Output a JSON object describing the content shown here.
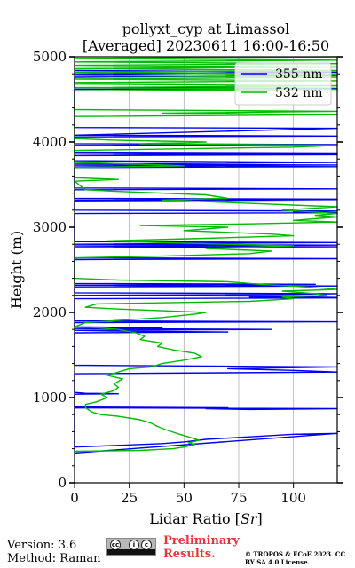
{
  "chart_data": {
    "type": "line",
    "title_line1": "pollyxt_cyp at Limassol",
    "title_line2": "[Averaged] 20230611 16:00-16:50",
    "xlabel_prefix": "Lidar Ratio [",
    "xlabel_unit": "Sr",
    "xlabel_suffix": "]",
    "ylabel": "Height (m)",
    "xlim": [
      0,
      120
    ],
    "ylim": [
      0,
      5000
    ],
    "xticks": [
      0,
      25,
      50,
      75,
      100
    ],
    "yticks": [
      0,
      1000,
      2000,
      3000,
      4000,
      5000
    ],
    "grid": "vertical",
    "legend_position": "top-right",
    "series": [
      {
        "name": "355 nm",
        "color": "#0000ee",
        "points": [
          [
            0,
            350
          ],
          [
            120,
            580
          ],
          [
            100,
            570
          ],
          [
            80,
            540
          ],
          [
            60,
            510
          ],
          [
            50,
            480
          ],
          [
            40,
            460
          ],
          [
            20,
            440
          ],
          [
            0,
            420
          ],
          [
            0,
            880
          ],
          [
            120,
            870
          ],
          [
            80,
            860
          ],
          [
            60,
            870
          ],
          [
            70,
            880
          ],
          [
            0,
            890
          ],
          [
            0,
            1040
          ],
          [
            20,
            1045
          ],
          [
            5,
            1050
          ],
          [
            0,
            1060
          ],
          [
            0,
            1280
          ],
          [
            120,
            1300
          ],
          [
            100,
            1320
          ],
          [
            70,
            1340
          ],
          [
            120,
            1360
          ],
          [
            0,
            1380
          ],
          [
            0,
            1760
          ],
          [
            70,
            1770
          ],
          [
            20,
            1780
          ],
          [
            0,
            1790
          ],
          [
            90,
            1800
          ],
          [
            0,
            1810
          ],
          [
            40,
            1820
          ],
          [
            0,
            1830
          ],
          [
            0,
            1880
          ],
          [
            120,
            1890
          ],
          [
            0,
            1900
          ],
          [
            0,
            2160
          ],
          [
            120,
            2170
          ],
          [
            80,
            2180
          ],
          [
            120,
            2190
          ],
          [
            0,
            2200
          ],
          [
            100,
            2210
          ],
          [
            120,
            2220
          ],
          [
            0,
            2230
          ],
          [
            0,
            2300
          ],
          [
            120,
            2310
          ],
          [
            0,
            2320
          ],
          [
            110,
            2330
          ],
          [
            0,
            2340
          ],
          [
            0,
            2620
          ],
          [
            120,
            2630
          ],
          [
            0,
            2640
          ],
          [
            0,
            2760
          ],
          [
            120,
            2770
          ],
          [
            0,
            2780
          ],
          [
            120,
            2790
          ],
          [
            0,
            2800
          ],
          [
            120,
            2820
          ],
          [
            0,
            2830
          ],
          [
            0,
            3160
          ],
          [
            120,
            3170
          ],
          [
            100,
            3180
          ],
          [
            120,
            3190
          ],
          [
            0,
            3200
          ],
          [
            0,
            3300
          ],
          [
            120,
            3310
          ],
          [
            0,
            3320
          ],
          [
            120,
            3330
          ],
          [
            0,
            3340
          ],
          [
            0,
            3440
          ],
          [
            120,
            3450
          ],
          [
            0,
            3460
          ],
          [
            0,
            3700
          ],
          [
            120,
            3710
          ],
          [
            0,
            3720
          ],
          [
            120,
            3730
          ],
          [
            0,
            3740
          ],
          [
            120,
            3760
          ],
          [
            0,
            3780
          ],
          [
            0,
            3840
          ],
          [
            120,
            3850
          ],
          [
            0,
            3860
          ],
          [
            120,
            3870
          ],
          [
            0,
            3880
          ],
          [
            0,
            3960
          ],
          [
            120,
            3970
          ],
          [
            0,
            3980
          ],
          [
            0,
            4060
          ],
          [
            120,
            4070
          ],
          [
            0,
            4080
          ],
          [
            120,
            4160
          ],
          [
            0,
            4170
          ],
          [
            0,
            4620
          ],
          [
            120,
            4630
          ],
          [
            0,
            4640
          ],
          [
            0,
            4760
          ],
          [
            120,
            4780
          ],
          [
            0,
            4800
          ],
          [
            120,
            4820
          ],
          [
            0,
            4840
          ]
        ]
      },
      {
        "name": "532 nm",
        "color": "#00bb00",
        "points": [
          [
            0,
            370
          ],
          [
            30,
            380
          ],
          [
            45,
            400
          ],
          [
            50,
            420
          ],
          [
            55,
            450
          ],
          [
            52,
            470
          ],
          [
            57,
            500
          ],
          [
            52,
            540
          ],
          [
            48,
            570
          ],
          [
            42,
            620
          ],
          [
            38,
            660
          ],
          [
            35,
            700
          ],
          [
            30,
            740
          ],
          [
            20,
            780
          ],
          [
            12,
            800
          ],
          [
            8,
            830
          ],
          [
            5,
            880
          ],
          [
            5,
            920
          ],
          [
            10,
            950
          ],
          [
            15,
            1000
          ],
          [
            12,
            1040
          ],
          [
            18,
            1080
          ],
          [
            20,
            1120
          ],
          [
            18,
            1160
          ],
          [
            22,
            1220
          ],
          [
            15,
            1260
          ],
          [
            20,
            1300
          ],
          [
            25,
            1340
          ],
          [
            35,
            1360
          ],
          [
            40,
            1400
          ],
          [
            50,
            1440
          ],
          [
            58,
            1480
          ],
          [
            55,
            1520
          ],
          [
            45,
            1560
          ],
          [
            38,
            1600
          ],
          [
            40,
            1640
          ],
          [
            30,
            1680
          ],
          [
            32,
            1720
          ],
          [
            28,
            1760
          ],
          [
            20,
            1800
          ],
          [
            10,
            1820
          ],
          [
            0,
            1830
          ],
          [
            5,
            1880
          ],
          [
            40,
            1940
          ],
          [
            55,
            1980
          ],
          [
            60,
            2000
          ],
          [
            40,
            2020
          ],
          [
            20,
            2040
          ],
          [
            5,
            2060
          ],
          [
            10,
            2100
          ],
          [
            80,
            2130
          ],
          [
            100,
            2160
          ],
          [
            95,
            2180
          ],
          [
            115,
            2200
          ],
          [
            110,
            2220
          ],
          [
            95,
            2250
          ],
          [
            120,
            2270
          ],
          [
            105,
            2300
          ],
          [
            85,
            2330
          ],
          [
            70,
            2360
          ],
          [
            20,
            2380
          ],
          [
            0,
            2400
          ],
          [
            0,
            2640
          ],
          [
            40,
            2660
          ],
          [
            80,
            2690
          ],
          [
            90,
            2720
          ],
          [
            60,
            2750
          ],
          [
            100,
            2780
          ],
          [
            40,
            2820
          ],
          [
            15,
            2840
          ],
          [
            60,
            2870
          ],
          [
            100,
            2900
          ],
          [
            90,
            2920
          ],
          [
            70,
            2940
          ],
          [
            50,
            2960
          ],
          [
            60,
            2980
          ],
          [
            70,
            3000
          ],
          [
            30,
            3020
          ],
          [
            80,
            3040
          ],
          [
            120,
            3060
          ],
          [
            100,
            3080
          ],
          [
            120,
            3120
          ],
          [
            110,
            3140
          ],
          [
            120,
            3160
          ],
          [
            95,
            3200
          ],
          [
            120,
            3240
          ],
          [
            80,
            3280
          ],
          [
            40,
            3320
          ],
          [
            70,
            3340
          ],
          [
            60,
            3380
          ],
          [
            20,
            3420
          ],
          [
            5,
            3440
          ],
          [
            0,
            3540
          ],
          [
            20,
            3560
          ],
          [
            0,
            3580
          ],
          [
            0,
            3700
          ],
          [
            50,
            3720
          ],
          [
            30,
            3740
          ],
          [
            0,
            3760
          ],
          [
            0,
            3900
          ],
          [
            100,
            3940
          ],
          [
            120,
            3960
          ],
          [
            30,
            3980
          ],
          [
            60,
            4000
          ],
          [
            20,
            4020
          ],
          [
            0,
            4040
          ],
          [
            0,
            4300
          ],
          [
            120,
            4320
          ],
          [
            40,
            4340
          ],
          [
            120,
            4360
          ],
          [
            0,
            4380
          ],
          [
            0,
            4600
          ],
          [
            120,
            4620
          ],
          [
            0,
            4640
          ],
          [
            120,
            4660
          ],
          [
            0,
            4680
          ],
          [
            0,
            4700
          ],
          [
            120,
            4720
          ],
          [
            0,
            4740
          ],
          [
            120,
            4760
          ],
          [
            0,
            4780
          ],
          [
            120,
            4800
          ],
          [
            0,
            4820
          ],
          [
            120,
            4840
          ],
          [
            0,
            4860
          ],
          [
            120,
            4880
          ],
          [
            0,
            4900
          ],
          [
            120,
            4920
          ],
          [
            0,
            4940
          ],
          [
            120,
            4960
          ],
          [
            0,
            4980
          ],
          [
            120,
            5000
          ]
        ]
      }
    ]
  },
  "footer": {
    "version": "Version: 3.6",
    "method": "Method: Raman",
    "license_logo": "cc-by-sa-logo",
    "cc_glyph_1": "cc",
    "cc_glyph_2": "i",
    "cc_glyph_3": "c",
    "preliminary": "Preliminary Results.",
    "copyright": "© TROPOS & ECoE 2023. CC BY SA 4.0 License."
  }
}
